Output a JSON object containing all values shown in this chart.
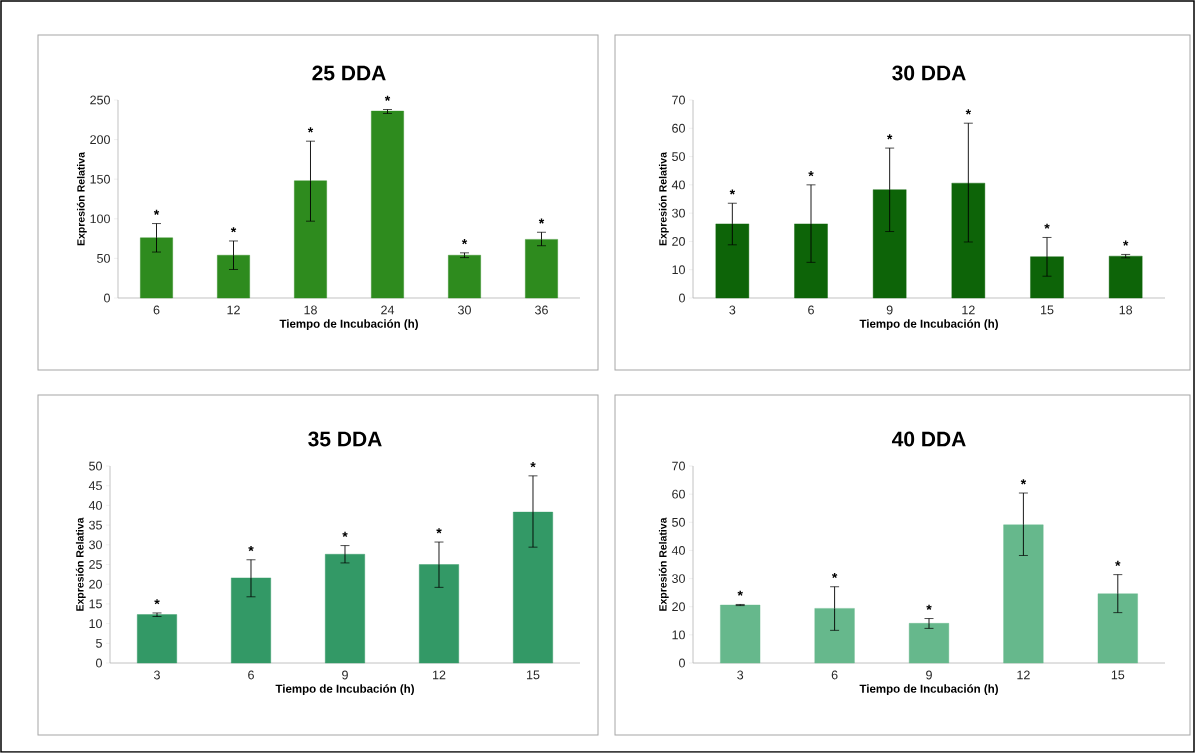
{
  "chart_data": [
    {
      "type": "bar",
      "title": "25 DDA",
      "xlabel": "Tiempo de Incubación (h)",
      "ylabel": "Expresión Relativa",
      "categories": [
        "6",
        "12",
        "18",
        "24",
        "30",
        "36"
      ],
      "values": [
        76,
        54,
        148,
        236,
        54,
        74
      ],
      "errors": [
        [
          58,
          94
        ],
        [
          36,
          72
        ],
        [
          97,
          198
        ],
        [
          233,
          238
        ],
        [
          51,
          57
        ],
        [
          66,
          83
        ]
      ],
      "color": "#2e8b1e",
      "ylim": [
        0,
        250
      ],
      "yticks": [
        0,
        50,
        100,
        150,
        200,
        250
      ],
      "annotations": [
        {
          "text": "*",
          "x": "6",
          "y": 94
        },
        {
          "text": "*",
          "x": "12",
          "y": 72
        },
        {
          "text": "*",
          "x": "18",
          "y": 198
        },
        {
          "text": "*",
          "x": "24",
          "y": 238
        },
        {
          "text": "*",
          "x": "30",
          "y": 57
        },
        {
          "text": "*",
          "x": "36",
          "y": 83
        }
      ]
    },
    {
      "type": "bar",
      "title": "30 DDA",
      "xlabel": "Tiempo de Incubación (h)",
      "ylabel": "Expresión Relativa",
      "categories": [
        "3",
        "6",
        "9",
        "12",
        "15",
        "18"
      ],
      "values": [
        26.2,
        26.2,
        38.3,
        40.6,
        14.6,
        14.8
      ],
      "errors": [
        [
          18.8,
          33.5
        ],
        [
          12.6,
          40
        ],
        [
          23.5,
          53
        ],
        [
          19.8,
          61.8
        ],
        [
          7.7,
          21.4
        ],
        [
          14.2,
          15.4
        ]
      ],
      "color": "#0d6408",
      "ylim": [
        0,
        70
      ],
      "yticks": [
        0,
        10,
        20,
        30,
        40,
        50,
        60,
        70
      ],
      "annotations": [
        {
          "text": "*",
          "x": "3",
          "y": 33.5
        },
        {
          "text": "*",
          "x": "6",
          "y": 40
        },
        {
          "text": "*",
          "x": "9",
          "y": 53
        },
        {
          "text": "*",
          "x": "12",
          "y": 61.8
        },
        {
          "text": "*",
          "x": "15",
          "y": 21.4
        },
        {
          "text": "*",
          "x": "18",
          "y": 15.4
        }
      ]
    },
    {
      "type": "bar",
      "title": "35 DDA",
      "xlabel": "Tiempo de Incubación (h)",
      "ylabel": "Expresión Relativa",
      "categories": [
        "3",
        "6",
        "9",
        "12",
        "15"
      ],
      "values": [
        12.3,
        21.6,
        27.6,
        25,
        38.3
      ],
      "errors": [
        [
          11.8,
          12.7
        ],
        [
          16.8,
          26.2
        ],
        [
          25.4,
          29.8
        ],
        [
          19.2,
          30.7
        ],
        [
          29.4,
          47.5
        ]
      ],
      "color": "#339966",
      "ylim": [
        0,
        50
      ],
      "yticks": [
        0,
        5,
        10,
        15,
        20,
        25,
        30,
        35,
        40,
        45,
        50
      ],
      "annotations": [
        {
          "text": "*",
          "x": "3",
          "y": 12.7
        },
        {
          "text": "*",
          "x": "6",
          "y": 26.2
        },
        {
          "text": "*",
          "x": "9",
          "y": 29.8
        },
        {
          "text": "*",
          "x": "12",
          "y": 30.7
        },
        {
          "text": "*",
          "x": "15",
          "y": 47.5
        }
      ]
    },
    {
      "type": "bar",
      "title": "40 DDA",
      "xlabel": "Tiempo de Incubación (h)",
      "ylabel": "Expresión Relativa",
      "categories": [
        "3",
        "6",
        "9",
        "12",
        "15"
      ],
      "values": [
        20.6,
        19.4,
        14.1,
        49.1,
        24.6
      ],
      "errors": [
        [
          20.4,
          20.8
        ],
        [
          11.6,
          27.1
        ],
        [
          12.3,
          15.8
        ],
        [
          38.2,
          60.4
        ],
        [
          17.9,
          31.4
        ]
      ],
      "color": "#66b88c",
      "ylim": [
        0,
        70
      ],
      "yticks": [
        0,
        10,
        20,
        30,
        40,
        50,
        60,
        70
      ],
      "annotations": [
        {
          "text": "*",
          "x": "3",
          "y": 20.8
        },
        {
          "text": "*",
          "x": "6",
          "y": 27.1
        },
        {
          "text": "*",
          "x": "9",
          "y": 15.8
        },
        {
          "text": "*",
          "x": "12",
          "y": 60.4
        },
        {
          "text": "*",
          "x": "15",
          "y": 31.4
        }
      ]
    }
  ]
}
